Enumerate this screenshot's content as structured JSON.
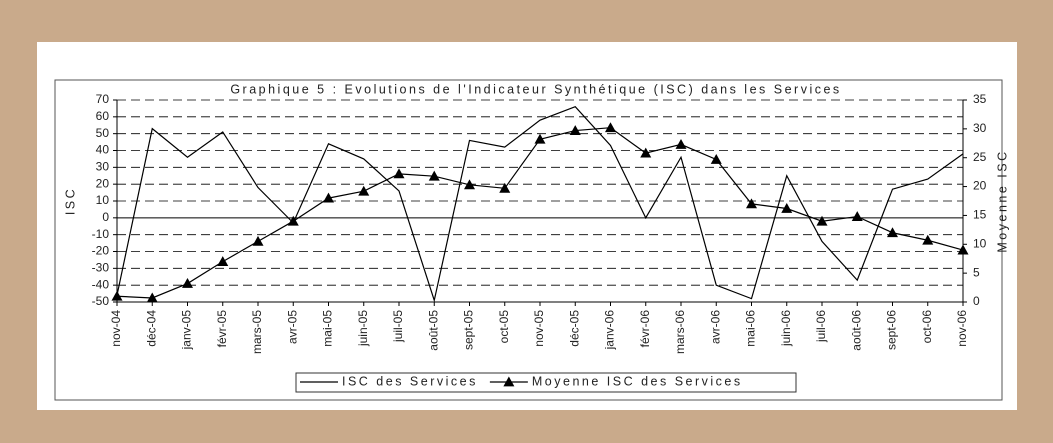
{
  "chart_data": {
    "type": "line",
    "title": "Graphique 5 : Evolutions de l'Indicateur Synthétique (ISC) dans les Services",
    "y_label": "ISC",
    "y2_label": "Moyenne ISC",
    "categories": [
      "nov-04",
      "déc-04",
      "janv-05",
      "févr-05",
      "mars-05",
      "avr-05",
      "mai-05",
      "juin-05",
      "juil-05",
      "août-05",
      "sept-05",
      "oct-05",
      "nov-05",
      "déc-05",
      "janv-06",
      "févr-06",
      "mars-06",
      "avr-06",
      "mai-06",
      "juin-06",
      "juil-06",
      "août-06",
      "sept-06",
      "oct-06",
      "nov-06"
    ],
    "series": [
      {
        "name": "ISC des Services",
        "color": "#000000",
        "marker": "none",
        "values": [
          -46,
          53,
          36,
          51,
          18,
          -3,
          44,
          35,
          16,
          -49,
          46,
          42,
          58,
          66,
          43,
          0,
          36,
          -40,
          -48,
          25,
          -14,
          -37,
          17,
          23,
          38
        ]
      },
      {
        "name": "Moyenne ISC des Services",
        "color": "#000000",
        "marker": "triangle",
        "axis": "y2",
        "values": [
          1,
          0.7,
          3.2,
          7,
          10.5,
          14,
          18,
          19.2,
          22.2,
          21.8,
          20.3,
          19.7,
          28.2,
          29.7,
          30.2,
          25.8,
          27.3,
          24.7,
          17,
          16.2,
          14,
          14.8,
          12,
          10.7,
          9
        ]
      }
    ],
    "ylim": [
      -50,
      70
    ],
    "yticks": [
      70,
      60,
      50,
      40,
      30,
      20,
      10,
      0,
      -10,
      -20,
      -30,
      -40,
      -50
    ],
    "y2lim": [
      0,
      35
    ],
    "y2ticks": [
      35,
      30,
      25,
      20,
      15,
      10,
      5,
      0
    ],
    "grid": true,
    "legend": "bottom"
  }
}
